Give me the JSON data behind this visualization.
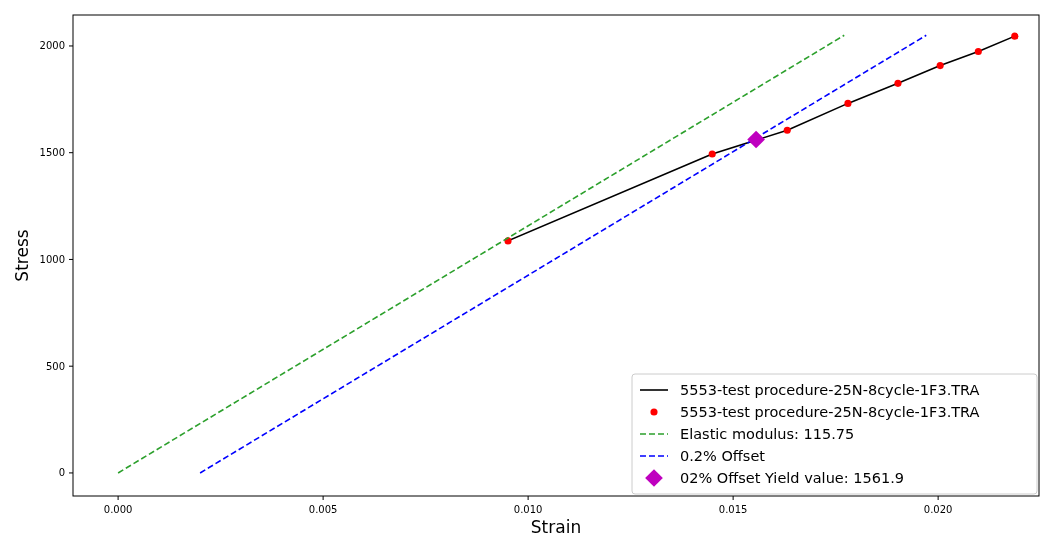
{
  "chart_data": {
    "type": "line",
    "xlabel": "Strain",
    "ylabel": "Stress",
    "xlim": [
      -0.0011,
      0.02246
    ],
    "ylim": [
      -108,
      2145
    ],
    "xticks": [
      {
        "value": 0,
        "label": "0.000"
      },
      {
        "value": 0.005,
        "label": "0.005"
      },
      {
        "value": 0.01,
        "label": "0.010"
      },
      {
        "value": 0.015,
        "label": "0.015"
      },
      {
        "value": 0.02,
        "label": "0.020"
      }
    ],
    "yticks": [
      0,
      500,
      1000,
      1500,
      2000
    ],
    "grid": false,
    "legend": "bottom right",
    "series": [
      {
        "name": "5553-test procedure-25N-8cycle-1F3.TRA",
        "color": "#000000",
        "marker": "none",
        "line_style": "solid",
        "x": [
          0.00951,
          0.01449,
          0.01632,
          0.0178,
          0.01902,
          0.02005,
          0.02098,
          0.02187
        ],
        "values": [
          1087,
          1494,
          1605,
          1731,
          1825,
          1908,
          1974,
          2046
        ]
      },
      {
        "name": "5553-test procedure-25N-8cycle-1F3.TRA",
        "type": "scatter",
        "color": "#ff0000",
        "marker": "circle",
        "x": [
          0.00951,
          0.01449,
          0.01632,
          0.0178,
          0.01902,
          0.02005,
          0.02098,
          0.02187
        ],
        "values": [
          1087,
          1494,
          1605,
          1731,
          1825,
          1908,
          1974,
          2046
        ]
      },
      {
        "name": "Elastic modulus: 115.75",
        "color": "#2ca02c",
        "marker": "none",
        "line_style": "dashed",
        "x": [
          0,
          0.01771
        ],
        "values": [
          0,
          2050
        ]
      },
      {
        "name": "0.2% Offset",
        "color": "#0000ff",
        "marker": "none",
        "line_style": "dashed",
        "x": [
          0.002,
          0.01971
        ],
        "values": [
          0,
          2050
        ]
      },
      {
        "name": "02% Offset Yield value: 1561.9",
        "type": "scatter",
        "color": "#bf00bf",
        "marker": "diamond",
        "x": [
          0.01556
        ],
        "values": [
          1561.9
        ]
      }
    ]
  }
}
